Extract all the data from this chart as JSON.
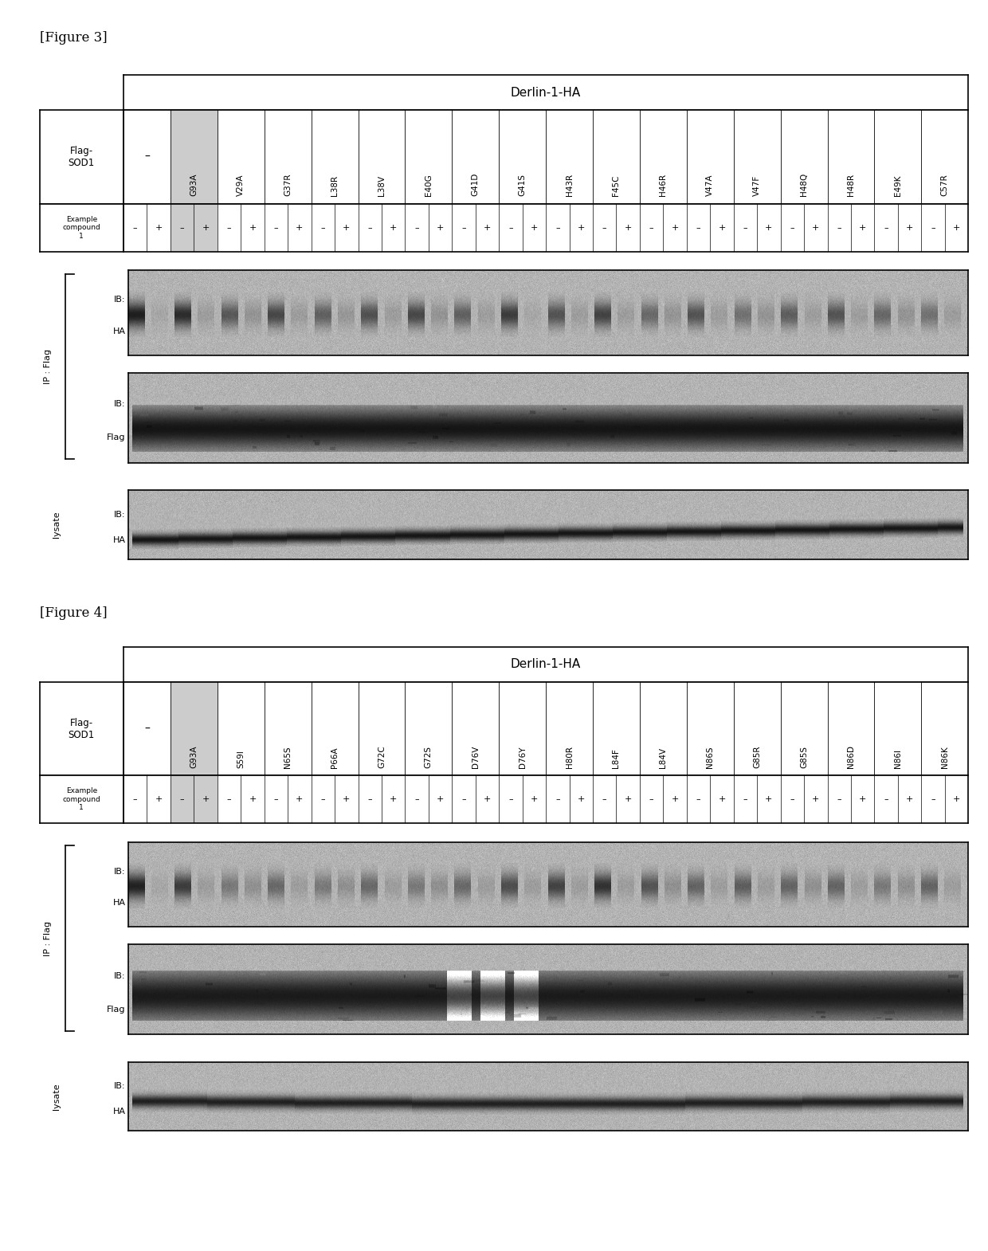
{
  "fig3_title": "[Figure 3]",
  "fig4_title": "[Figure 4]",
  "derlin_label": "Derlin-1-HA",
  "fig3_columns": [
    "-",
    "G93A",
    "V29A",
    "G37R",
    "L38R",
    "L38V",
    "E40G",
    "G41D",
    "G41S",
    "H43R",
    "F45C",
    "H46R",
    "V47A",
    "V47F",
    "H48Q",
    "H48R",
    "E49K",
    "C57R"
  ],
  "fig4_columns": [
    "-",
    "G93A",
    "S59I",
    "N65S",
    "P66A",
    "G72C",
    "G72S",
    "D76V",
    "D76Y",
    "H80R",
    "L84F",
    "L84V",
    "N86S",
    "G85R",
    "G85S",
    "N86D",
    "N86I",
    "N86K"
  ],
  "bg_color": "#ffffff",
  "fig3_ib_ha_intensities_minus": [
    0.9,
    0.82,
    0.55,
    0.65,
    0.5,
    0.6,
    0.65,
    0.5,
    0.72,
    0.58,
    0.68,
    0.45,
    0.58,
    0.4,
    0.52,
    0.58,
    0.46,
    0.4
  ],
  "fig3_ib_ha_intensities_plus": [
    0.1,
    0.18,
    0.25,
    0.18,
    0.22,
    0.18,
    0.25,
    0.18,
    0.1,
    0.18,
    0.18,
    0.25,
    0.18,
    0.25,
    0.18,
    0.18,
    0.25,
    0.18
  ],
  "fig4_ib_ha_intensities_minus": [
    0.88,
    0.72,
    0.35,
    0.45,
    0.35,
    0.45,
    0.35,
    0.45,
    0.62,
    0.68,
    0.78,
    0.58,
    0.48,
    0.52,
    0.48,
    0.48,
    0.35,
    0.48
  ],
  "fig4_ib_ha_intensities_plus": [
    0.1,
    0.18,
    0.28,
    0.18,
    0.28,
    0.18,
    0.28,
    0.18,
    0.18,
    0.18,
    0.18,
    0.28,
    0.18,
    0.18,
    0.28,
    0.18,
    0.28,
    0.18
  ]
}
